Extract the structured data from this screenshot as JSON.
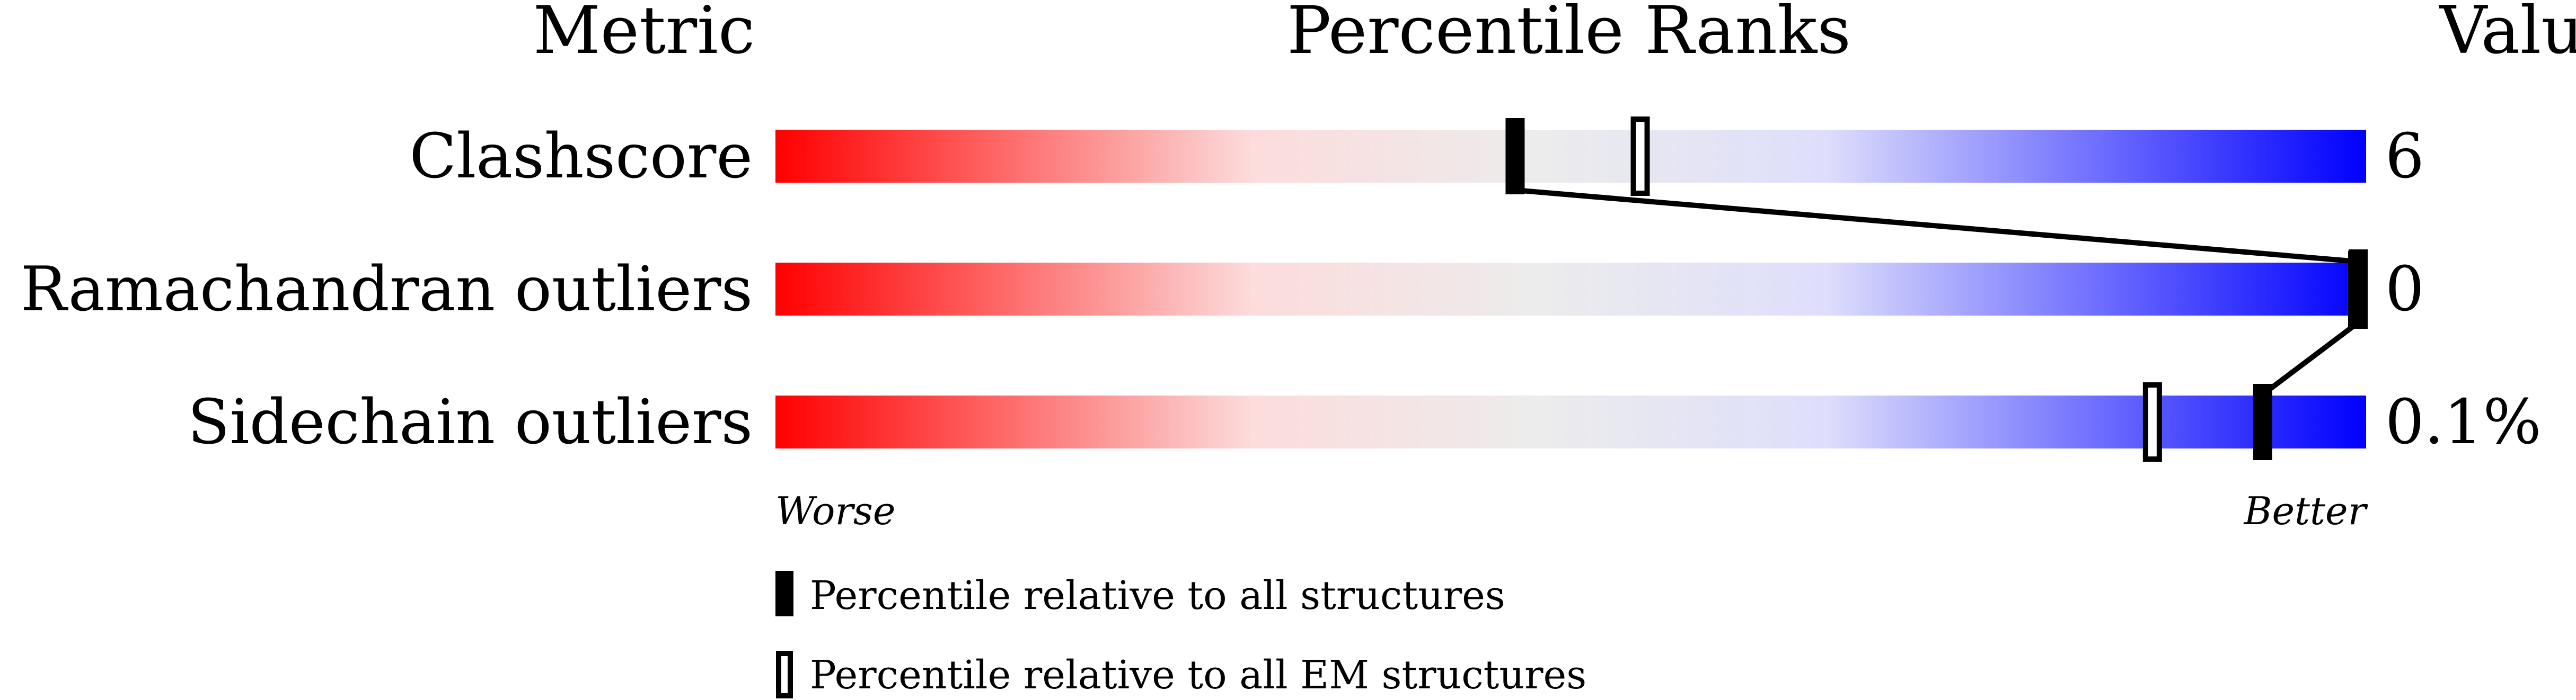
{
  "chart_data": {
    "type": "percentile-bar",
    "headers": {
      "metric": "Metric",
      "ranks": "Percentile Ranks",
      "value": "Value"
    },
    "axis_range": [
      0,
      100
    ],
    "axis_ends": {
      "worse": "Worse",
      "better": "Better"
    },
    "gradient_colors": [
      "#ff0000",
      "#fcdcdc",
      "#ececec",
      "#dedefc",
      "#0000ff"
    ],
    "metrics": [
      {
        "name": "Clashscore",
        "value": "6",
        "percentile_all": 46.5,
        "percentile_em": 54.4
      },
      {
        "name": "Ramachandran outliers",
        "value": "0",
        "percentile_all": 100,
        "percentile_em": 100
      },
      {
        "name": "Sidechain outliers",
        "value": "0.1%",
        "percentile_all": 93.5,
        "percentile_em": 86.6
      }
    ],
    "legend": [
      {
        "marker": "filled",
        "label": "Percentile relative to all structures"
      },
      {
        "marker": "hollow",
        "label": "Percentile relative to all EM structures"
      }
    ]
  }
}
